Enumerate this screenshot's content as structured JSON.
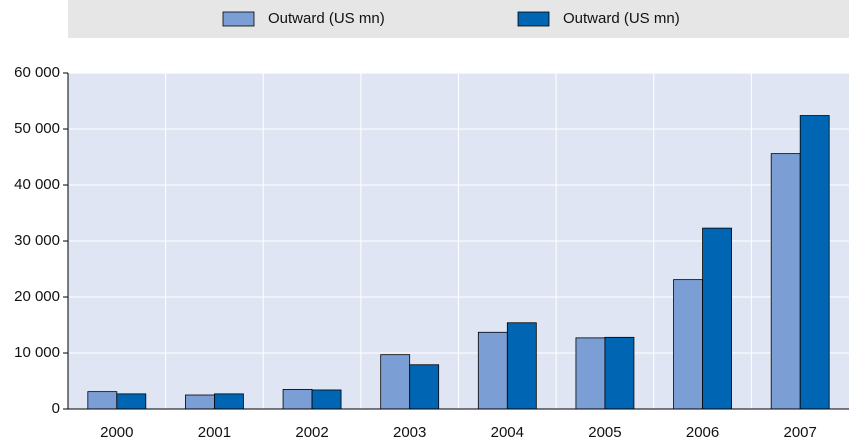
{
  "chart_data": {
    "type": "bar",
    "categories": [
      "2000",
      "2001",
      "2002",
      "2003",
      "2004",
      "2005",
      "2006",
      "2007"
    ],
    "series": [
      {
        "name": "Outward (US mn)",
        "color": "#7b9fd4",
        "values": [
          3100,
          2500,
          3500,
          9700,
          13700,
          12700,
          23100,
          45600
        ]
      },
      {
        "name": "Outward (US mn)",
        "color": "#0066b3",
        "values": [
          2700,
          2700,
          3400,
          7900,
          15400,
          12800,
          32300,
          52400
        ]
      }
    ],
    "ylim": [
      0,
      60000
    ],
    "yticks": [
      0,
      {
        "value": 10000,
        "label": "10 000"
      },
      {
        "value": 20000,
        "label": "20 000"
      },
      {
        "value": 30000,
        "label": "30 000"
      },
      {
        "value": 40000,
        "label": "40 000"
      },
      {
        "value": 50000,
        "label": "50 000"
      },
      {
        "value": 60000,
        "label": "60 000"
      }
    ],
    "grid": true,
    "legend": "top"
  }
}
